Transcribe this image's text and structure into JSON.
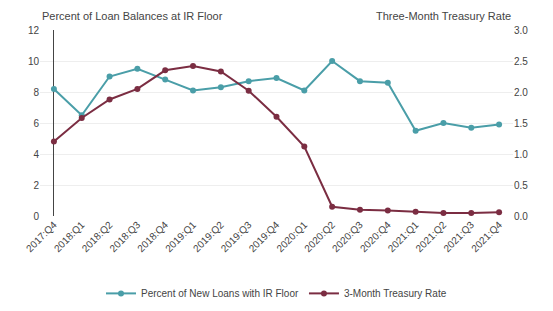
{
  "chart_data": {
    "type": "line",
    "ylabel": "Percent of Loan Balances at IR Floor",
    "y2label": "Three-Month Treasury Rate",
    "categories": [
      "2017:Q4",
      "2018:Q1",
      "2018:Q2",
      "2018:Q3",
      "2018:Q4",
      "2019:Q1",
      "2019:Q2",
      "2019:Q3",
      "2019:Q4",
      "2020:Q1",
      "2020:Q2",
      "2020:Q3",
      "2020:Q4",
      "2021:Q1",
      "2021:Q2",
      "2021:Q3",
      "2021:Q4"
    ],
    "series": [
      {
        "name": "Percent of New Loans with IR Floor",
        "color": "#4a9ea8",
        "marker": "circle",
        "values": [
          8.2,
          6.5,
          9.0,
          9.5,
          8.8,
          8.1,
          8.3,
          8.7,
          8.9,
          8.1,
          10.0,
          8.7,
          8.6,
          5.5,
          6.0,
          5.7,
          5.9
        ]
      },
      {
        "name": "3-Month Treasury Rate",
        "color": "#7b2d42",
        "marker": "circle",
        "axis": "y2",
        "values": [
          1.2,
          1.58,
          1.88,
          2.05,
          2.35,
          2.42,
          2.33,
          2.02,
          1.6,
          1.12,
          0.15,
          0.1,
          0.09,
          0.07,
          0.05,
          0.05,
          0.06
        ]
      }
    ],
    "ylim": [
      0,
      12
    ],
    "yticks": [
      0,
      2,
      4,
      6,
      8,
      10,
      12
    ],
    "y2lim": [
      0,
      3.0
    ],
    "y2ticks": [
      {
        "value": 0.0,
        "label": "0.0"
      },
      0.5,
      {
        "value": 1.0,
        "label": "1.0"
      },
      1.5,
      {
        "value": 2.0,
        "label": "2.0"
      },
      2.5,
      {
        "value": 3.0,
        "label": "3.0"
      }
    ],
    "grid": true,
    "legend": "bottom"
  }
}
